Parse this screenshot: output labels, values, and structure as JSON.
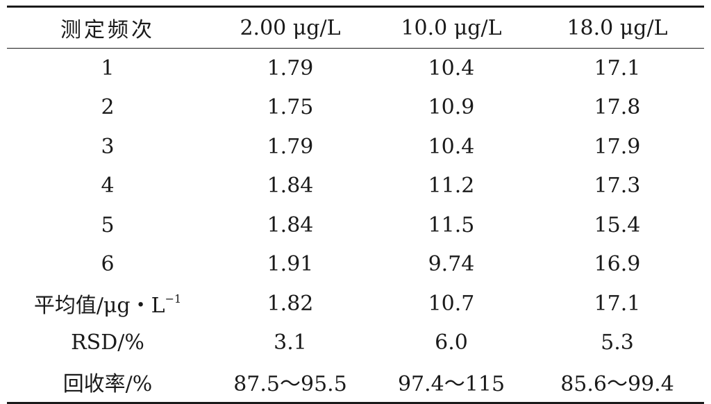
{
  "table": {
    "headers": [
      "测定频次",
      "2.00 μg/L",
      "10.0 μg/L",
      "18.0 μg/L"
    ],
    "rows": [
      [
        "1",
        "1.79",
        "10.4",
        "17.1"
      ],
      [
        "2",
        "1.75",
        "10.9",
        "17.8"
      ],
      [
        "3",
        "1.79",
        "10.4",
        "17.9"
      ],
      [
        "4",
        "1.84",
        "11.2",
        "17.3"
      ],
      [
        "5",
        "1.84",
        "11.5",
        "15.4"
      ],
      [
        "6",
        "1.91",
        "9.74",
        "16.9"
      ],
      [
        "平均值/μg・L",
        "1.82",
        "10.7",
        "17.1"
      ],
      [
        "RSD/%",
        "3.1",
        "6.0",
        "5.3"
      ],
      [
        "回收率/%",
        "87.5～95.5",
        "97.4～115",
        "85.6～99.4"
      ]
    ],
    "mean_row_superscript": "−1"
  }
}
